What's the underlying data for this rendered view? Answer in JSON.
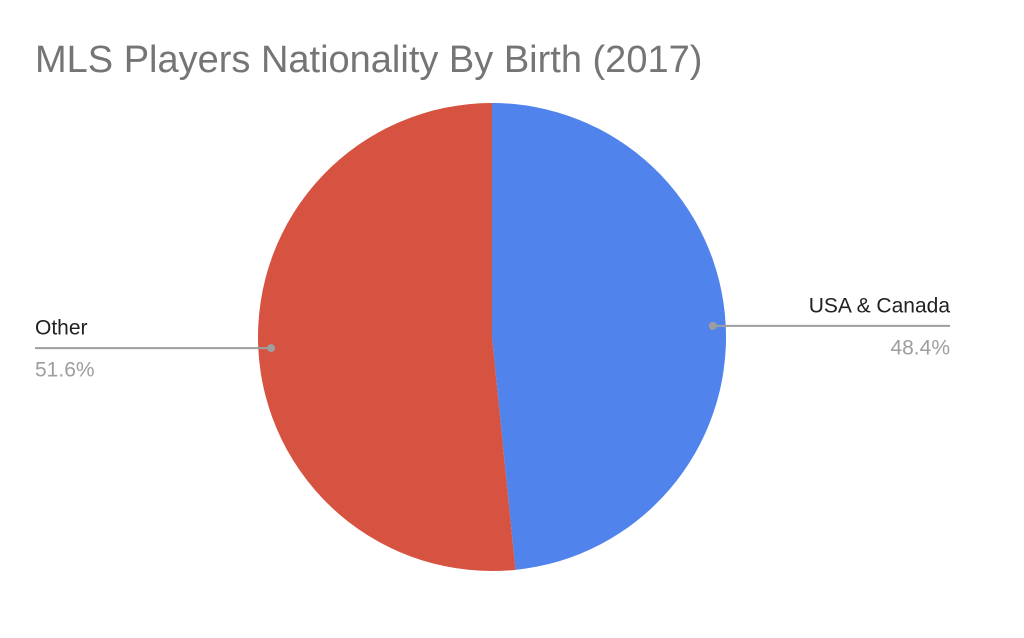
{
  "chart_data": {
    "type": "pie",
    "title": "MLS Players Nationality By Birth (2017)",
    "categories": [
      "USA & Canada",
      "Other"
    ],
    "values": [
      48.4,
      51.6
    ],
    "value_labels": [
      "48.4%",
      "51.6%"
    ],
    "colors": [
      "#5083ec",
      "#d65241"
    ]
  }
}
